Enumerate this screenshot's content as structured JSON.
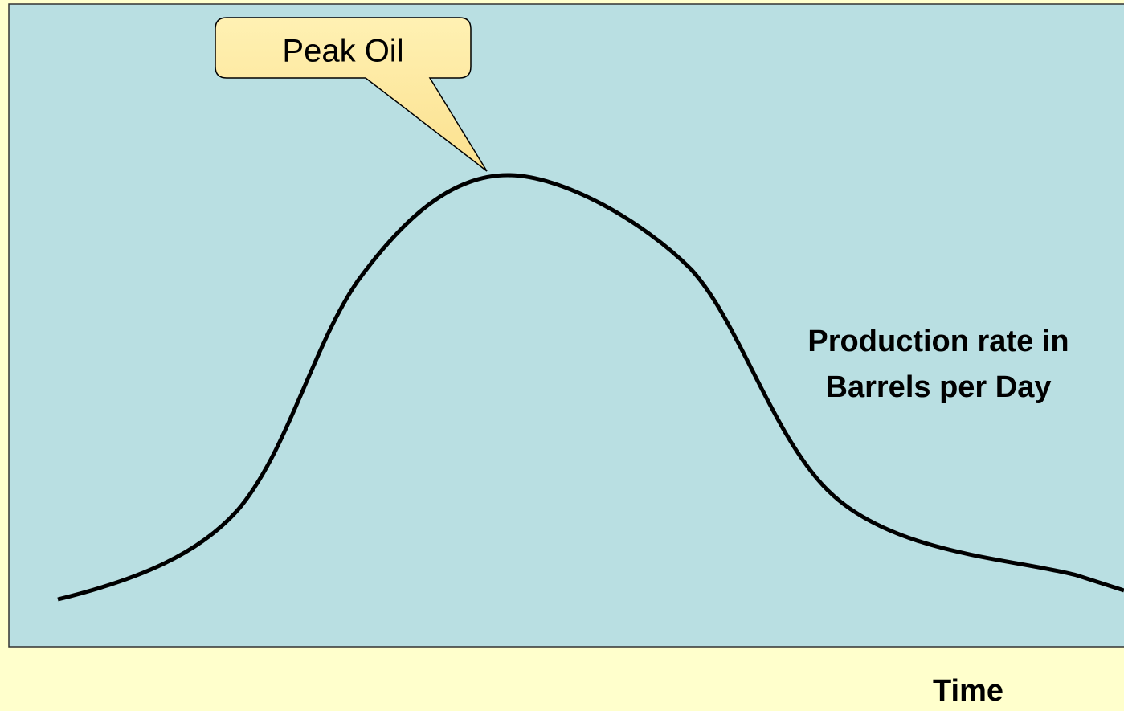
{
  "callout": {
    "text": "Peak Oil"
  },
  "curve_label": {
    "lines": [
      "Production rate in",
      "Barrels per Day"
    ]
  },
  "axis_label": {
    "text": "Time"
  }
}
